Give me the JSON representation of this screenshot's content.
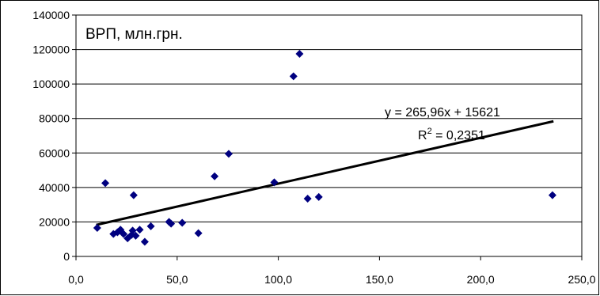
{
  "chart_data": {
    "type": "scatter",
    "title": "ВРП, млн.грн.",
    "xlabel": "",
    "ylabel": "",
    "xlim": [
      0,
      250
    ],
    "ylim": [
      0,
      140000
    ],
    "x_ticks": [
      "0,0",
      "50,0",
      "100,0",
      "150,0",
      "200,0",
      "250,0"
    ],
    "y_ticks": [
      "0",
      "20000",
      "40000",
      "60000",
      "80000",
      "100000",
      "120000",
      "140000"
    ],
    "grid": "horizontal",
    "marker_color": "#000080",
    "series": [
      {
        "points": [
          [
            10.5,
            16500
          ],
          [
            14.5,
            42500
          ],
          [
            18.5,
            13000
          ],
          [
            20.5,
            14000
          ],
          [
            22.0,
            15500
          ],
          [
            23.5,
            13000
          ],
          [
            25.5,
            10500
          ],
          [
            27.5,
            12500
          ],
          [
            28.0,
            15000
          ],
          [
            28.5,
            35500
          ],
          [
            29.5,
            12000
          ],
          [
            31.5,
            15500
          ],
          [
            34.0,
            8500
          ],
          [
            37.0,
            17500
          ],
          [
            46.0,
            20000
          ],
          [
            47.0,
            19000
          ],
          [
            52.5,
            19500
          ],
          [
            60.5,
            13500
          ],
          [
            68.5,
            46500
          ],
          [
            75.5,
            59500
          ],
          [
            98.0,
            43000
          ],
          [
            107.5,
            104500
          ],
          [
            110.5,
            117500
          ],
          [
            114.5,
            33500
          ],
          [
            120.0,
            34500
          ],
          [
            235.5,
            35500
          ]
        ]
      }
    ],
    "trendline": {
      "slope": 265.96,
      "intercept": 15621,
      "x_range": [
        10,
        236
      ],
      "equation": "y = 265,96x + 15621",
      "r2_prefix": "R",
      "r2_sup": "2",
      "r2_value": " = 0,2351"
    }
  }
}
